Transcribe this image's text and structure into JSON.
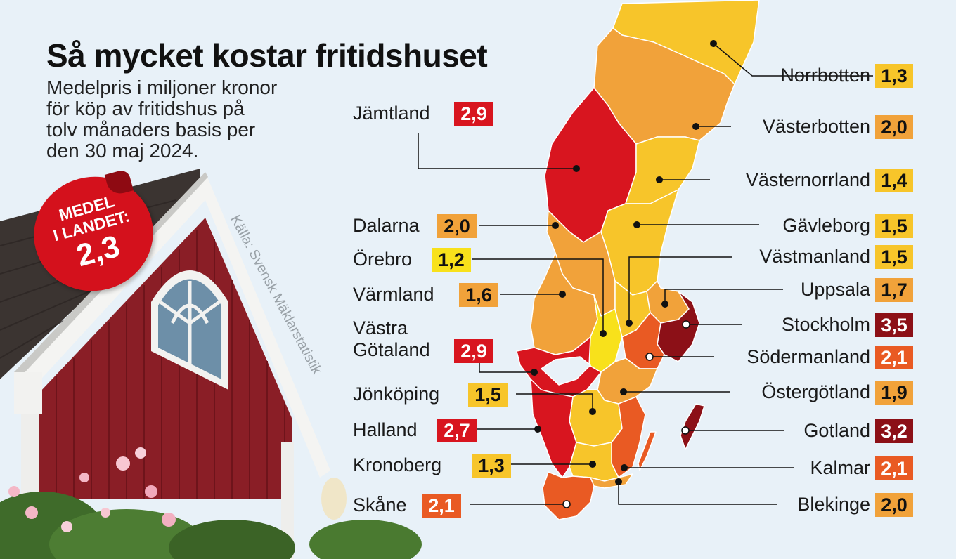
{
  "title": "Så mycket kostar fritidshuset",
  "subtitle_lines": [
    "Medelpris i miljoner kronor",
    "för köp av fritidshus på",
    "tolv månaders basis per",
    "den 30 maj 2024."
  ],
  "source": "Källa: Svensk Mäklarstatistik",
  "badge": {
    "line1": "MEDEL",
    "line2": "I LANDET:",
    "value": "2,3"
  },
  "color_scale": {
    "yellow": "#f8e11b",
    "gold": "#f7c52a",
    "orange": "#f1a23a",
    "red_orange": "#e95a23",
    "red": "#d8151f",
    "dark_red": "#8c1017"
  },
  "regions": [
    {
      "name": "Norrbotten",
      "value": "1,3",
      "color": "gold"
    },
    {
      "name": "Västerbotten",
      "value": "2,0",
      "color": "orange"
    },
    {
      "name": "Jämtland",
      "value": "2,9",
      "color": "red"
    },
    {
      "name": "Västernorrland",
      "value": "1,4",
      "color": "gold"
    },
    {
      "name": "Dalarna",
      "value": "2,0",
      "color": "orange"
    },
    {
      "name": "Gävleborg",
      "value": "1,5",
      "color": "gold"
    },
    {
      "name": "Örebro",
      "value": "1,2",
      "color": "yellow"
    },
    {
      "name": "Västmanland",
      "value": "1,5",
      "color": "gold"
    },
    {
      "name": "Värmland",
      "value": "1,6",
      "color": "orange"
    },
    {
      "name": "Uppsala",
      "value": "1,7",
      "color": "orange"
    },
    {
      "name": "Stockholm",
      "value": "3,5",
      "color": "dark_red"
    },
    {
      "name": "Västra Götaland",
      "value": "2,9",
      "color": "red"
    },
    {
      "name": "Södermanland",
      "value": "2,1",
      "color": "red_orange"
    },
    {
      "name": "Jönköping",
      "value": "1,5",
      "color": "gold"
    },
    {
      "name": "Östergötland",
      "value": "1,9",
      "color": "orange"
    },
    {
      "name": "Halland",
      "value": "2,7",
      "color": "red"
    },
    {
      "name": "Gotland",
      "value": "3,2",
      "color": "dark_red"
    },
    {
      "name": "Kronoberg",
      "value": "1,3",
      "color": "gold"
    },
    {
      "name": "Kalmar",
      "value": "2,1",
      "color": "red_orange"
    },
    {
      "name": "Skåne",
      "value": "2,1",
      "color": "red_orange"
    },
    {
      "name": "Blekinge",
      "value": "2,0",
      "color": "orange"
    }
  ]
}
